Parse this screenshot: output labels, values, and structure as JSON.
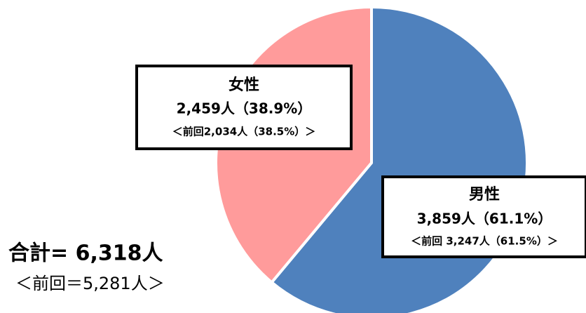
{
  "chart_data": {
    "type": "pie",
    "categories": [
      "男性",
      "女性"
    ],
    "values": [
      3859,
      2459
    ],
    "value_labels": [
      "3,859人（61.1%）",
      "2,459人（38.9%）"
    ],
    "previous_labels": [
      "＜前回 3,247人（61.5%）＞",
      "＜前回2,034人（38.5%）＞"
    ],
    "colors": [
      "#4f81bd",
      "#ff9b9b"
    ],
    "total_label": "合計= 6,318人",
    "total_previous_label": "＜前回＝5,281人＞"
  }
}
